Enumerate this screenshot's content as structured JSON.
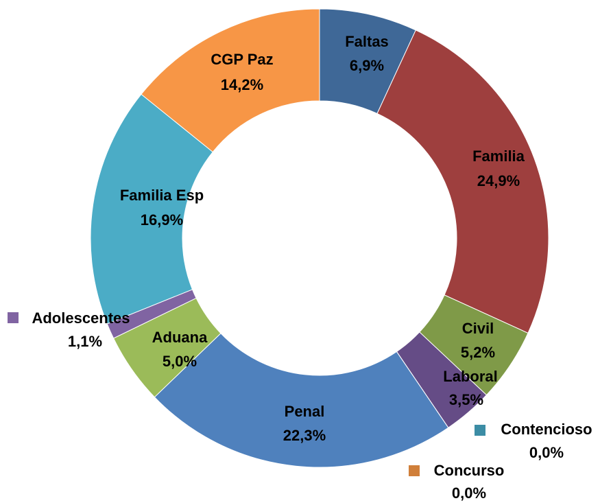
{
  "chart_data": {
    "type": "donut",
    "categories": [
      "Faltas",
      "Familia",
      "Civil",
      "Laboral",
      "Contencioso",
      "Concurso",
      "Penal",
      "Aduana",
      "Adolescentes",
      "Familia Esp",
      "CGP Paz"
    ],
    "values": [
      6.9,
      24.9,
      5.2,
      3.5,
      0.0,
      0.0,
      22.3,
      5.0,
      1.1,
      16.9,
      14.2
    ],
    "value_labels": [
      "6,9%",
      "24,9%",
      "5,2%",
      "3,5%",
      "0,0%",
      "0,0%",
      "22,3%",
      "5,0%",
      "1,1%",
      "16,9%",
      "14,2%"
    ],
    "colors": [
      "#3f6897",
      "#9e3f3e",
      "#7f9a48",
      "#654c86",
      "#3c8da5",
      "#d07f3a",
      "#4f81bd",
      "#9bbb59",
      "#8064a2",
      "#4bacc6",
      "#f79646"
    ]
  }
}
